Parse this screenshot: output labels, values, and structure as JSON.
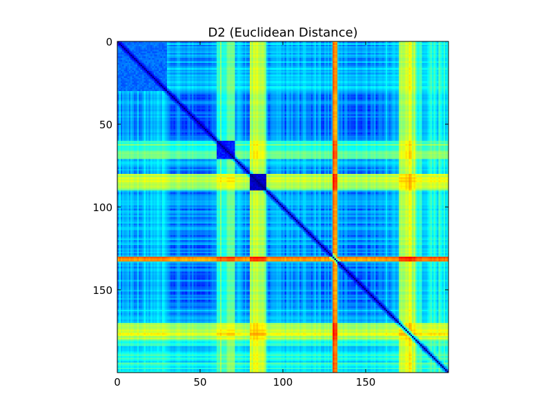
{
  "chart_data": {
    "type": "heatmap",
    "title": "D2 (Euclidean Distance)",
    "xlabel": "",
    "ylabel": "",
    "matrix_size": 200,
    "xlim": [
      0,
      199
    ],
    "ylim": [
      199,
      0
    ],
    "x_ticks": [
      "0",
      "50",
      "100",
      "150"
    ],
    "y_ticks": [
      "0",
      "50",
      "100",
      "150"
    ],
    "colormap": "jet",
    "colors": [
      "#00007f",
      "#0000ff",
      "#007fff",
      "#00ffff",
      "#7fff7f",
      "#ffff00",
      "#ff7f00",
      "#ff0000",
      "#7f0000"
    ],
    "diagonal_value": 0,
    "grid": false,
    "row_profile": [
      {
        "range": [
          0,
          29
        ],
        "level": 0.32
      },
      {
        "range": [
          30,
          59
        ],
        "level": 0.22
      },
      {
        "range": [
          60,
          70
        ],
        "level": 0.52
      },
      {
        "range": [
          71,
          79
        ],
        "level": 0.28
      },
      {
        "range": [
          80,
          89
        ],
        "level": 0.62
      },
      {
        "range": [
          90,
          129
        ],
        "level": 0.26
      },
      {
        "range": [
          130,
          132
        ],
        "level": 0.92
      },
      {
        "range": [
          133,
          159
        ],
        "level": 0.24
      },
      {
        "range": [
          160,
          169
        ],
        "level": 0.3
      },
      {
        "range": [
          170,
          179
        ],
        "level": 0.68
      },
      {
        "range": [
          180,
          199
        ],
        "level": 0.42
      }
    ],
    "blocks": [
      {
        "rows": [
          80,
          89
        ],
        "cols": [
          80,
          89
        ],
        "level": 0.04
      },
      {
        "rows": [
          60,
          70
        ],
        "cols": [
          60,
          70
        ],
        "level": 0.12
      },
      {
        "rows": [
          0,
          29
        ],
        "cols": [
          0,
          29
        ],
        "level": 0.2
      }
    ]
  }
}
